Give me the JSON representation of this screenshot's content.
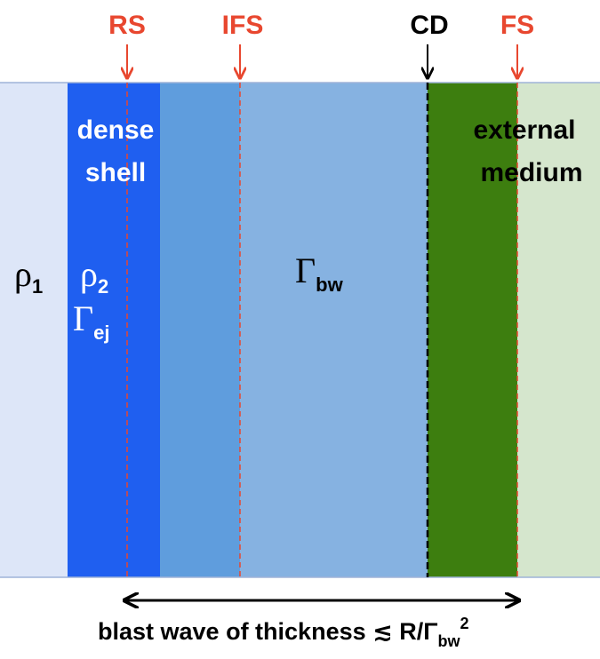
{
  "markers": [
    {
      "label": "RS"
    },
    {
      "label": "IFS"
    },
    {
      "label": "CD"
    },
    {
      "label": "FS"
    }
  ],
  "regions": {
    "dense_shell": {
      "line1": "dense",
      "line2": "shell"
    },
    "external_medium": {
      "line1": "external",
      "line2": "medium"
    },
    "rho1": {
      "symbol": "ρ",
      "subscript": "1"
    },
    "rho2": {
      "symbol": "ρ",
      "subscript": "2"
    },
    "gamma_ej": {
      "symbol": "Γ",
      "subscript": "ej"
    },
    "gamma_bw": {
      "symbol": "Γ",
      "subscript": "bw"
    }
  },
  "caption": {
    "text": "blast wave of thickness ≲ R/Γ",
    "subscript": "bw",
    "superscript": "2"
  }
}
